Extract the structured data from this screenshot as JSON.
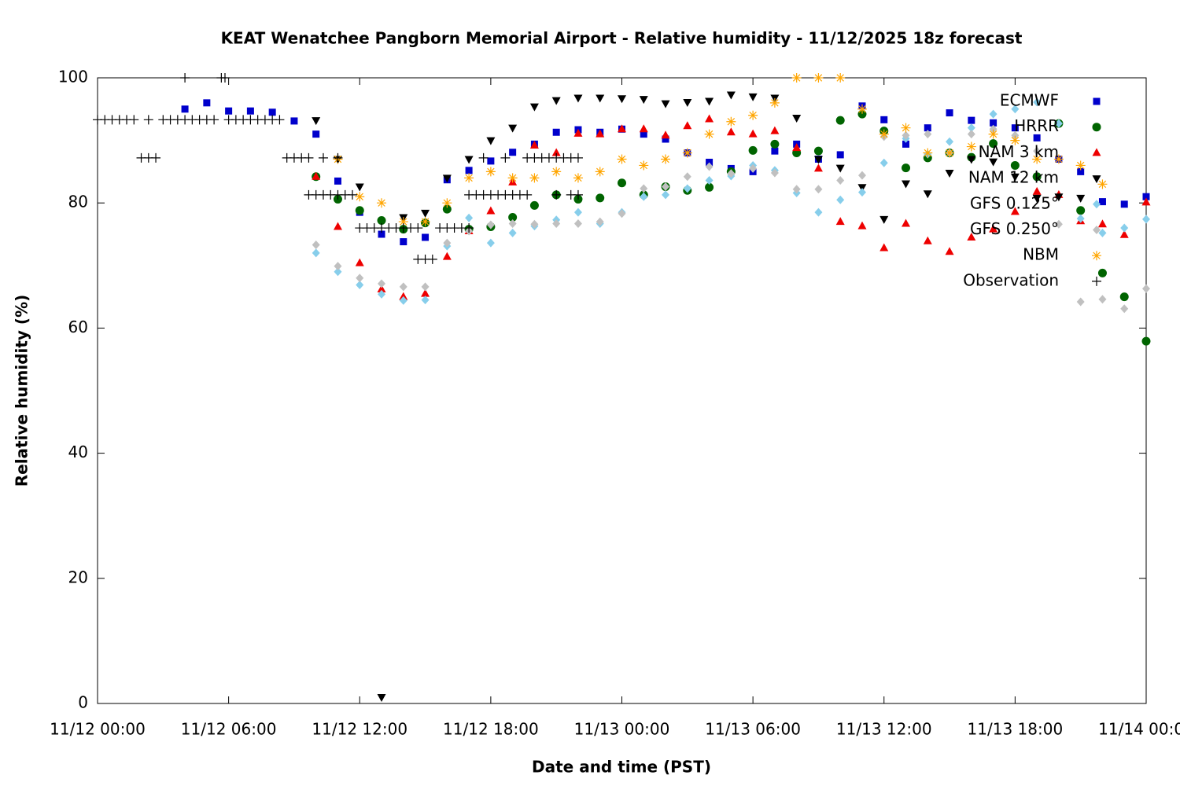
{
  "chart_data": {
    "type": "scatter",
    "title": "KEAT Wenatchee Pangborn Memorial Airport - Relative humidity - 11/12/2025 18z forecast",
    "x_label": "Date and time (PST)",
    "y_label": "Relative humidity (%)",
    "xlim": [
      "11/12 00:00",
      "11/14 00:00"
    ],
    "xticks": [
      "11/12 00:00",
      "11/12 06:00",
      "11/12 12:00",
      "11/12 18:00",
      "11/13 00:00",
      "11/13 06:00",
      "11/13 12:00",
      "11/13 18:00",
      "11/14 00:00"
    ],
    "ylim": [
      0,
      100
    ],
    "yticks": [
      0,
      20,
      40,
      60,
      80,
      100
    ],
    "legend": "upper right",
    "series": [
      {
        "name": "ECMWF",
        "color": "#0000cc",
        "marker": "square",
        "x": [
          "11/12 04:00",
          "11/12 05:00",
          "11/12 06:00",
          "11/12 07:00",
          "11/12 08:00",
          "11/12 09:00",
          "11/12 10:00",
          "11/12 11:00",
          "11/12 12:00",
          "11/12 13:00",
          "11/12 14:00",
          "11/12 15:00",
          "11/12 16:00",
          "11/12 17:00",
          "11/12 18:00",
          "11/12 19:00",
          "11/12 20:00",
          "11/12 21:00",
          "11/12 22:00",
          "11/12 23:00",
          "11/13 00:00",
          "11/13 01:00",
          "11/13 02:00",
          "11/13 03:00",
          "11/13 04:00",
          "11/13 05:00",
          "11/13 06:00",
          "11/13 07:00",
          "11/13 08:00",
          "11/13 09:00",
          "11/13 10:00",
          "11/13 11:00",
          "11/13 12:00",
          "11/13 13:00",
          "11/13 14:00",
          "11/13 15:00",
          "11/13 16:00",
          "11/13 17:00",
          "11/13 18:00",
          "11/13 19:00",
          "11/13 20:00",
          "11/13 21:00",
          "11/13 22:00",
          "11/13 23:00",
          "11/14 00:00"
        ],
        "values": [
          95,
          96,
          94.7,
          94.7,
          94.5,
          93.1,
          91,
          83.5,
          78.5,
          75,
          73.8,
          74.5,
          83.7,
          85.2,
          86.7,
          88.1,
          89.4,
          91.3,
          91.7,
          91.3,
          91.8,
          91,
          90.2,
          88,
          86.5,
          85.5,
          85,
          88.3,
          89.4,
          87,
          87.7,
          95.5,
          93.3,
          89.4,
          92,
          94.4,
          93.2,
          92.8,
          92,
          90.4,
          87,
          85,
          80.2,
          79.8,
          81
        ]
      },
      {
        "name": "HRRR",
        "color": "#006400",
        "marker": "circle",
        "x": [
          "11/12 10:00",
          "11/12 11:00",
          "11/12 12:00",
          "11/12 13:00",
          "11/12 14:00",
          "11/12 15:00",
          "11/12 16:00",
          "11/12 17:00",
          "11/12 18:00",
          "11/12 19:00",
          "11/12 20:00",
          "11/12 21:00",
          "11/12 22:00",
          "11/12 23:00",
          "11/13 00:00",
          "11/13 01:00",
          "11/13 02:00",
          "11/13 03:00",
          "11/13 04:00",
          "11/13 05:00",
          "11/13 06:00",
          "11/13 07:00",
          "11/13 08:00",
          "11/13 09:00",
          "11/13 10:00",
          "11/13 11:00",
          "11/13 12:00",
          "11/13 13:00",
          "11/13 14:00",
          "11/13 15:00",
          "11/13 16:00",
          "11/13 17:00",
          "11/13 18:00",
          "11/13 19:00",
          "11/13 20:00",
          "11/13 21:00",
          "11/13 22:00",
          "11/13 23:00",
          "11/14 00:00"
        ],
        "values": [
          84.2,
          80.6,
          78.8,
          77.2,
          75.8,
          76.8,
          79,
          75.8,
          76.2,
          77.7,
          79.6,
          81.3,
          80.6,
          80.8,
          83.2,
          81.3,
          82.6,
          82,
          82.5,
          85,
          88.4,
          89.4,
          88,
          88.3,
          93.2,
          94.2,
          91.5,
          85.6,
          87.2,
          88,
          87.3,
          89.5,
          86,
          84.2,
          92.7,
          78.8,
          68.8,
          65,
          57.9
        ]
      },
      {
        "name": "NAM 3 km",
        "color": "#ee0000",
        "marker": "triangle-up",
        "x": [
          "11/12 10:00",
          "11/12 11:00",
          "11/12 12:00",
          "11/12 13:00",
          "11/12 14:00",
          "11/12 15:00",
          "11/12 16:00",
          "11/12 17:00",
          "11/12 18:00",
          "11/12 19:00",
          "11/12 20:00",
          "11/12 21:00",
          "11/12 22:00",
          "11/12 23:00",
          "11/13 00:00",
          "11/13 01:00",
          "11/13 02:00",
          "11/13 03:00",
          "11/13 04:00",
          "11/13 05:00",
          "11/13 06:00",
          "11/13 07:00",
          "11/13 08:00",
          "11/13 09:00",
          "11/13 10:00",
          "11/13 11:00",
          "11/13 12:00",
          "11/13 13:00",
          "11/13 14:00",
          "11/13 15:00",
          "11/13 16:00",
          "11/13 17:00",
          "11/13 18:00",
          "11/13 19:00",
          "11/13 20:00",
          "11/13 21:00",
          "11/13 22:00",
          "11/13 23:00",
          "11/14 00:00"
        ],
        "values": [
          84.2,
          76.2,
          70.4,
          66.2,
          65,
          65.5,
          71.4,
          75.5,
          78.7,
          83.3,
          89.2,
          88,
          91.1,
          91,
          91.8,
          91.8,
          90.8,
          92.3,
          93.4,
          91.3,
          91,
          91.5,
          88.8,
          85.5,
          77,
          76.3,
          72.8,
          76.7,
          73.9,
          72.2,
          74.5,
          75.8,
          78.6,
          81.8,
          81.3,
          77.1,
          76.6,
          74.9,
          80.1
        ]
      },
      {
        "name": "NAM 12 km",
        "color": "#000000",
        "marker": "triangle-down",
        "x": [
          "11/12 10:00",
          "11/12 11:00",
          "11/12 12:00",
          "11/12 13:00",
          "11/12 14:00",
          "11/12 15:00",
          "11/12 16:00",
          "11/12 17:00",
          "11/12 18:00",
          "11/12 19:00",
          "11/12 20:00",
          "11/12 21:00",
          "11/12 22:00",
          "11/12 23:00",
          "11/13 00:00",
          "11/13 01:00",
          "11/13 02:00",
          "11/13 03:00",
          "11/13 04:00",
          "11/13 05:00",
          "11/13 06:00",
          "11/13 07:00",
          "11/13 08:00",
          "11/13 09:00",
          "11/13 10:00",
          "11/13 11:00",
          "11/13 12:00",
          "11/13 13:00",
          "11/13 14:00",
          "11/13 15:00",
          "11/13 16:00",
          "11/13 17:00",
          "11/13 18:00",
          "11/13 19:00",
          "11/13 20:00",
          "11/13 21:00"
        ],
        "values": [
          93.2,
          87,
          82.6,
          1,
          77.7,
          78.4,
          84,
          87,
          90,
          92,
          95.4,
          96.4,
          96.8,
          96.8,
          96.7,
          96.6,
          95.9,
          96.1,
          96.3,
          97.3,
          97,
          96.8,
          93.6,
          87,
          85.6,
          82.5,
          77.4,
          83.1,
          81.5,
          84.8,
          87,
          86.6,
          84.2,
          80.8,
          81,
          80.8
        ]
      },
      {
        "name": "GFS 0.125°",
        "color": "#87ceeb",
        "marker": "diamond",
        "x": [
          "11/12 10:00",
          "11/12 11:00",
          "11/12 12:00",
          "11/12 13:00",
          "11/12 14:00",
          "11/12 15:00",
          "11/12 16:00",
          "11/12 17:00",
          "11/12 18:00",
          "11/12 19:00",
          "11/12 20:00",
          "11/12 21:00",
          "11/12 22:00",
          "11/12 23:00",
          "11/13 00:00",
          "11/13 01:00",
          "11/13 02:00",
          "11/13 03:00",
          "11/13 04:00",
          "11/13 05:00",
          "11/13 06:00",
          "11/13 07:00",
          "11/13 08:00",
          "11/13 09:00",
          "11/13 10:00",
          "11/13 11:00",
          "11/13 12:00",
          "11/13 13:00",
          "11/13 14:00",
          "11/13 15:00",
          "11/13 16:00",
          "11/13 17:00",
          "11/13 18:00",
          "11/13 19:00",
          "11/13 20:00",
          "11/13 21:00",
          "11/13 22:00",
          "11/13 23:00",
          "11/14 00:00"
        ],
        "values": [
          72,
          69,
          66.9,
          65.4,
          64.4,
          64.5,
          73.1,
          77.6,
          73.6,
          75.2,
          76.3,
          77.3,
          78.5,
          76.7,
          78.5,
          81,
          81.3,
          82.3,
          83.6,
          84.3,
          86,
          85.2,
          81.6,
          78.5,
          80.5,
          81.7,
          86.4,
          90.3,
          87.8,
          89.8,
          92,
          94.2,
          95,
          96.1,
          92.7,
          77.5,
          75.2,
          76,
          77.4
        ]
      },
      {
        "name": "GFS 0.250°",
        "color": "#c0c0c0",
        "marker": "diamond",
        "x": [
          "11/12 10:00",
          "11/12 11:00",
          "11/12 12:00",
          "11/12 13:00",
          "11/12 14:00",
          "11/12 15:00",
          "11/12 16:00",
          "11/12 17:00",
          "11/12 18:00",
          "11/12 19:00",
          "11/12 20:00",
          "11/12 21:00",
          "11/12 22:00",
          "11/12 23:00",
          "11/13 00:00",
          "11/13 01:00",
          "11/13 02:00",
          "11/13 03:00",
          "11/13 04:00",
          "11/13 05:00",
          "11/13 06:00",
          "11/13 07:00",
          "11/13 08:00",
          "11/13 09:00",
          "11/13 10:00",
          "11/13 11:00",
          "11/13 12:00",
          "11/13 13:00",
          "11/13 14:00",
          "11/13 15:00",
          "11/13 16:00",
          "11/13 17:00",
          "11/13 18:00",
          "11/13 19:00",
          "11/13 20:00",
          "11/13 21:00",
          "11/13 22:00",
          "11/13 23:00",
          "11/14 00:00"
        ],
        "values": [
          73.3,
          69.9,
          68,
          67.1,
          66.6,
          66.6,
          73.6,
          75.5,
          76.5,
          76.7,
          76.6,
          76.7,
          76.7,
          77,
          78.3,
          82.3,
          82.6,
          84.2,
          85.8,
          84.7,
          85.5,
          84.8,
          82.2,
          82.2,
          83.6,
          84.4,
          90.6,
          90.8,
          91,
          88,
          91,
          91.8,
          90.8,
          88.3,
          76.6,
          64.2,
          64.6,
          63.1,
          66.3
        ]
      },
      {
        "name": "NBM",
        "color": "#ffa500",
        "marker": "star",
        "x": [
          "11/12 11:00",
          "11/12 12:00",
          "11/12 13:00",
          "11/12 14:00",
          "11/12 15:00",
          "11/12 16:00",
          "11/12 17:00",
          "11/12 18:00",
          "11/12 19:00",
          "11/12 20:00",
          "11/12 21:00",
          "11/12 22:00",
          "11/12 23:00",
          "11/13 00:00",
          "11/13 01:00",
          "11/13 02:00",
          "11/13 03:00",
          "11/13 04:00",
          "11/13 05:00",
          "11/13 06:00",
          "11/13 07:00",
          "11/13 08:00",
          "11/13 09:00",
          "11/13 10:00",
          "11/13 11:00",
          "11/13 12:00",
          "11/13 13:00",
          "11/13 14:00",
          "11/13 15:00",
          "11/13 16:00",
          "11/13 17:00",
          "11/13 18:00",
          "11/13 19:00",
          "11/13 20:00",
          "11/13 21:00",
          "11/13 22:00"
        ],
        "values": [
          87,
          81,
          80,
          77,
          77,
          80,
          84,
          85,
          84,
          84,
          85,
          84,
          85,
          87,
          86,
          87,
          88,
          91,
          93,
          94,
          96,
          100,
          100,
          100,
          95,
          91,
          92,
          88,
          88,
          89,
          91,
          90,
          87,
          87,
          86,
          83
        ]
      },
      {
        "name": "Observation",
        "color": "#000000",
        "marker": "plus",
        "x": [
          "11/12 00:00",
          "11/12 00:20",
          "11/12 00:40",
          "11/12 01:00",
          "11/12 01:20",
          "11/12 01:40",
          "11/12 02:20",
          "11/12 02:00",
          "11/12 02:20",
          "11/12 02:40",
          "11/12 03:00",
          "11/12 03:20",
          "11/12 03:40",
          "11/12 04:00",
          "11/12 04:20",
          "11/12 04:40",
          "11/12 05:00",
          "11/12 05:20",
          "11/12 04:00",
          "11/12 05:40",
          "11/12 05:50",
          "11/12 06:00",
          "11/12 06:20",
          "11/12 06:40",
          "11/12 07:00",
          "11/12 07:20",
          "11/12 07:40",
          "11/12 08:00",
          "11/12 08:20",
          "11/12 08:40",
          "11/12 09:00",
          "11/12 09:20",
          "11/12 09:40",
          "11/12 10:20",
          "11/12 11:00",
          "11/12 09:40",
          "11/12 10:00",
          "11/12 10:20",
          "11/12 10:40",
          "11/12 11:00",
          "11/12 11:20",
          "11/12 11:40",
          "11/12 12:00",
          "11/12 12:20",
          "11/12 12:40",
          "11/12 13:00",
          "11/12 13:20",
          "11/12 13:40",
          "11/12 14:00",
          "11/12 14:20",
          "11/12 14:40",
          "11/12 14:40",
          "11/12 15:00",
          "11/12 15:20",
          "11/12 15:40",
          "11/12 16:00",
          "11/12 16:20",
          "11/12 16:40",
          "11/12 17:00",
          "11/12 17:00",
          "11/12 17:20",
          "11/12 17:40",
          "11/12 18:00",
          "11/12 18:20",
          "11/12 18:40",
          "11/12 19:00",
          "11/12 19:20",
          "11/12 19:40",
          "11/12 17:40",
          "11/12 18:40",
          "11/12 19:40",
          "11/12 20:00",
          "11/12 20:20",
          "11/12 20:40",
          "11/12 21:00",
          "11/12 21:20",
          "11/12 21:40",
          "11/12 22:00",
          "11/12 21:00",
          "11/12 21:40",
          "11/12 22:00"
        ],
        "values": [
          93.3,
          93.3,
          93.3,
          93.3,
          93.3,
          93.3,
          93.3,
          87.2,
          87.2,
          87.2,
          93.3,
          93.3,
          93.3,
          93.3,
          93.3,
          93.3,
          93.3,
          93.3,
          100,
          100,
          100,
          93.3,
          93.3,
          93.3,
          93.3,
          93.3,
          93.3,
          93.3,
          93.3,
          87.2,
          87.2,
          87.2,
          87.2,
          87.2,
          87.2,
          81.3,
          81.3,
          81.3,
          81.3,
          81.3,
          81.3,
          81.3,
          76,
          76,
          76,
          76,
          76,
          76,
          76,
          76,
          76,
          71,
          71,
          71,
          76,
          76,
          76,
          76,
          76,
          81.3,
          81.3,
          81.3,
          81.3,
          81.3,
          81.3,
          81.3,
          81.3,
          81.3,
          87.2,
          87.2,
          87.2,
          87.2,
          87.2,
          87.2,
          87.2,
          87.2,
          87.2,
          87.2,
          81.3,
          81.3,
          81.3
        ]
      }
    ]
  }
}
